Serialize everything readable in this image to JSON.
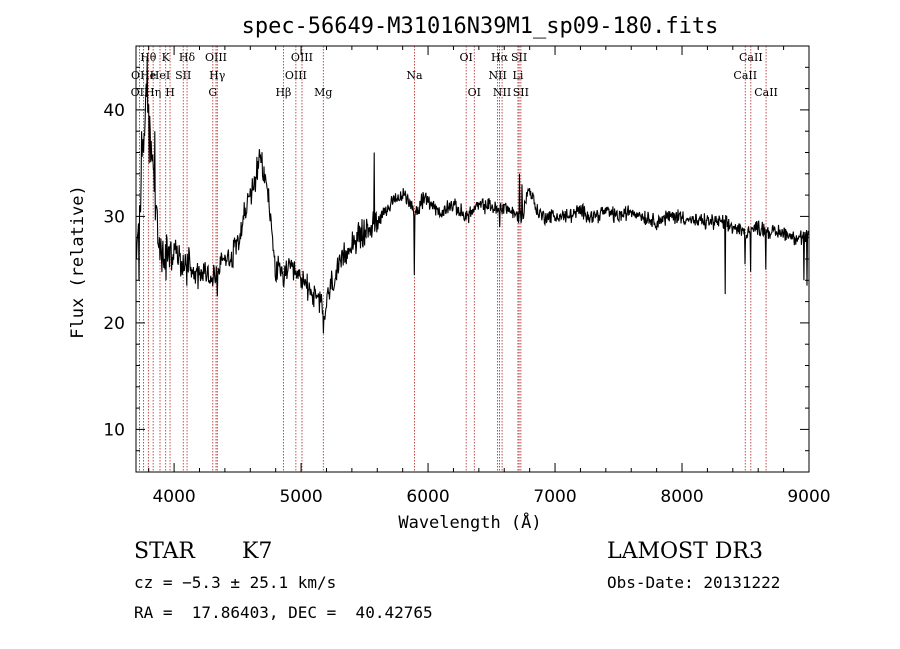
{
  "chart_data": {
    "type": "line",
    "title": "spec-56649-M31016N39M1_sp09-180.fits",
    "xlabel": "Wavelength (Å)",
    "ylabel": "Flux (relative)",
    "xlim": [
      3700,
      9000
    ],
    "ylim": [
      6,
      46
    ],
    "x_ticks": [
      4000,
      5000,
      6000,
      7000,
      8000,
      9000
    ],
    "y_ticks": [
      10,
      20,
      30,
      40
    ],
    "grid": false,
    "line_color": "#000000",
    "marker_color": "#b22222",
    "anchors": [
      [
        3700,
        25
      ],
      [
        3720,
        30
      ],
      [
        3740,
        33
      ],
      [
        3760,
        36
      ],
      [
        3780,
        42
      ],
      [
        3800,
        40
      ],
      [
        3830,
        35
      ],
      [
        3860,
        30
      ],
      [
        3880,
        27
      ],
      [
        3910,
        26
      ],
      [
        3950,
        27
      ],
      [
        3980,
        26
      ],
      [
        4000,
        27
      ],
      [
        4040,
        26
      ],
      [
        4080,
        25
      ],
      [
        4100,
        26.5
      ],
      [
        4150,
        25
      ],
      [
        4200,
        24.5
      ],
      [
        4250,
        25
      ],
      [
        4300,
        24
      ],
      [
        4350,
        25
      ],
      [
        4400,
        26.5
      ],
      [
        4450,
        26
      ],
      [
        4500,
        28
      ],
      [
        4550,
        30
      ],
      [
        4600,
        32
      ],
      [
        4650,
        34
      ],
      [
        4680,
        35.5
      ],
      [
        4700,
        34
      ],
      [
        4730,
        33
      ],
      [
        4760,
        30
      ],
      [
        4780,
        27
      ],
      [
        4800,
        25
      ],
      [
        4850,
        24.5
      ],
      [
        4900,
        25
      ],
      [
        4950,
        24.5
      ],
      [
        5000,
        24
      ],
      [
        5050,
        23.5
      ],
      [
        5100,
        22.5
      ],
      [
        5150,
        22
      ],
      [
        5180,
        20.5
      ],
      [
        5200,
        22
      ],
      [
        5250,
        24
      ],
      [
        5300,
        25
      ],
      [
        5350,
        26.5
      ],
      [
        5400,
        27.5
      ],
      [
        5450,
        28
      ],
      [
        5500,
        28.5
      ],
      [
        5550,
        29
      ],
      [
        5600,
        29.5
      ],
      [
        5650,
        30.5
      ],
      [
        5700,
        31
      ],
      [
        5750,
        31.5
      ],
      [
        5800,
        32
      ],
      [
        5850,
        31.5
      ],
      [
        5880,
        31
      ],
      [
        5900,
        30
      ],
      [
        5950,
        31.5
      ],
      [
        6000,
        31.5
      ],
      [
        6050,
        31
      ],
      [
        6100,
        30
      ],
      [
        6150,
        31
      ],
      [
        6200,
        31
      ],
      [
        6250,
        30.5
      ],
      [
        6300,
        30
      ],
      [
        6350,
        30.5
      ],
      [
        6400,
        31
      ],
      [
        6450,
        31
      ],
      [
        6500,
        31
      ],
      [
        6550,
        30.5
      ],
      [
        6600,
        31
      ],
      [
        6650,
        30.5
      ],
      [
        6700,
        30
      ],
      [
        6750,
        30
      ],
      [
        6780,
        32.5
      ],
      [
        6820,
        32
      ],
      [
        6860,
        30.5
      ],
      [
        6900,
        30
      ],
      [
        6950,
        30
      ],
      [
        7000,
        30
      ],
      [
        7050,
        30
      ],
      [
        7100,
        30
      ],
      [
        7200,
        30.5
      ],
      [
        7300,
        30
      ],
      [
        7400,
        30.5
      ],
      [
        7500,
        30
      ],
      [
        7600,
        30.5
      ],
      [
        7700,
        30
      ],
      [
        7800,
        29.5
      ],
      [
        7900,
        30
      ],
      [
        8000,
        30
      ],
      [
        8100,
        29.5
      ],
      [
        8200,
        29.5
      ],
      [
        8300,
        29.5
      ],
      [
        8400,
        29
      ],
      [
        8500,
        28.5
      ],
      [
        8600,
        29
      ],
      [
        8700,
        28.5
      ],
      [
        8800,
        28.5
      ],
      [
        8900,
        28
      ],
      [
        9000,
        28
      ]
    ],
    "spikes": [
      [
        3725,
        24
      ],
      [
        3745,
        38
      ],
      [
        3790,
        45
      ],
      [
        3805,
        35
      ],
      [
        3850,
        38
      ],
      [
        3935,
        24
      ],
      [
        4101,
        23.5
      ],
      [
        4340,
        22.5
      ],
      [
        4861,
        23.5
      ],
      [
        5175,
        19
      ],
      [
        5578,
        36
      ],
      [
        5893,
        24.5
      ],
      [
        6563,
        29
      ],
      [
        6720,
        34
      ],
      [
        6740,
        33
      ],
      [
        8340,
        22.7
      ],
      [
        8498,
        25.5
      ],
      [
        8542,
        24.8
      ],
      [
        8662,
        25
      ],
      [
        8960,
        24
      ],
      [
        8985,
        23.5
      ]
    ],
    "lines": [
      {
        "label": "Hθ",
        "wave": 3797,
        "row": 0
      },
      {
        "label": "OII",
        "wave": 3727,
        "row": 2
      },
      {
        "label": "OHe",
        "wave": 3760,
        "row": 1
      },
      {
        "label": "Hη",
        "wave": 3835,
        "row": 2
      },
      {
        "label": "HeI",
        "wave": 3889,
        "row": 1
      },
      {
        "label": "K",
        "wave": 3934,
        "row": 0
      },
      {
        "label": "H",
        "wave": 3968,
        "row": 2
      },
      {
        "label": "SII",
        "wave": 4072,
        "row": 1
      },
      {
        "label": "Hδ",
        "wave": 4102,
        "row": 0
      },
      {
        "label": "G",
        "wave": 4305,
        "row": 2
      },
      {
        "label": "OIII",
        "wave": 4330,
        "row": 0
      },
      {
        "label": "Hγ",
        "wave": 4340,
        "row": 1
      },
      {
        "label": "Hβ",
        "wave": 4861,
        "row": 2
      },
      {
        "label": "OIII",
        "wave": 4959,
        "row": 1
      },
      {
        "label": "OIII",
        "wave": 5007,
        "row": 0
      },
      {
        "label": "Mg",
        "wave": 5175,
        "row": 2
      },
      {
        "label": "Na",
        "wave": 5893,
        "row": 1
      },
      {
        "label": "OI",
        "wave": 6300,
        "row": 0
      },
      {
        "label": "OI",
        "wave": 6364,
        "row": 2
      },
      {
        "label": "NII",
        "wave": 6548,
        "row": 1
      },
      {
        "label": "Hα",
        "wave": 6563,
        "row": 0
      },
      {
        "label": "NII",
        "wave": 6583,
        "row": 2
      },
      {
        "label": "Li",
        "wave": 6708,
        "row": 1
      },
      {
        "label": "SII",
        "wave": 6717,
        "row": 0
      },
      {
        "label": "SII",
        "wave": 6731,
        "row": 2
      },
      {
        "label": "CaII",
        "wave": 8498,
        "row": 1
      },
      {
        "label": "CaII",
        "wave": 8542,
        "row": 0
      },
      {
        "label": "CaII",
        "wave": 8662,
        "row": 2
      }
    ]
  },
  "info": {
    "class": "STAR",
    "subclass": "K7",
    "survey": "LAMOST DR3",
    "cz": "cz = −5.3 ± 25.1 km/s",
    "obs_date": "Obs-Date: 20131222",
    "coords": "RA =  17.86403, DEC =  40.42765"
  }
}
